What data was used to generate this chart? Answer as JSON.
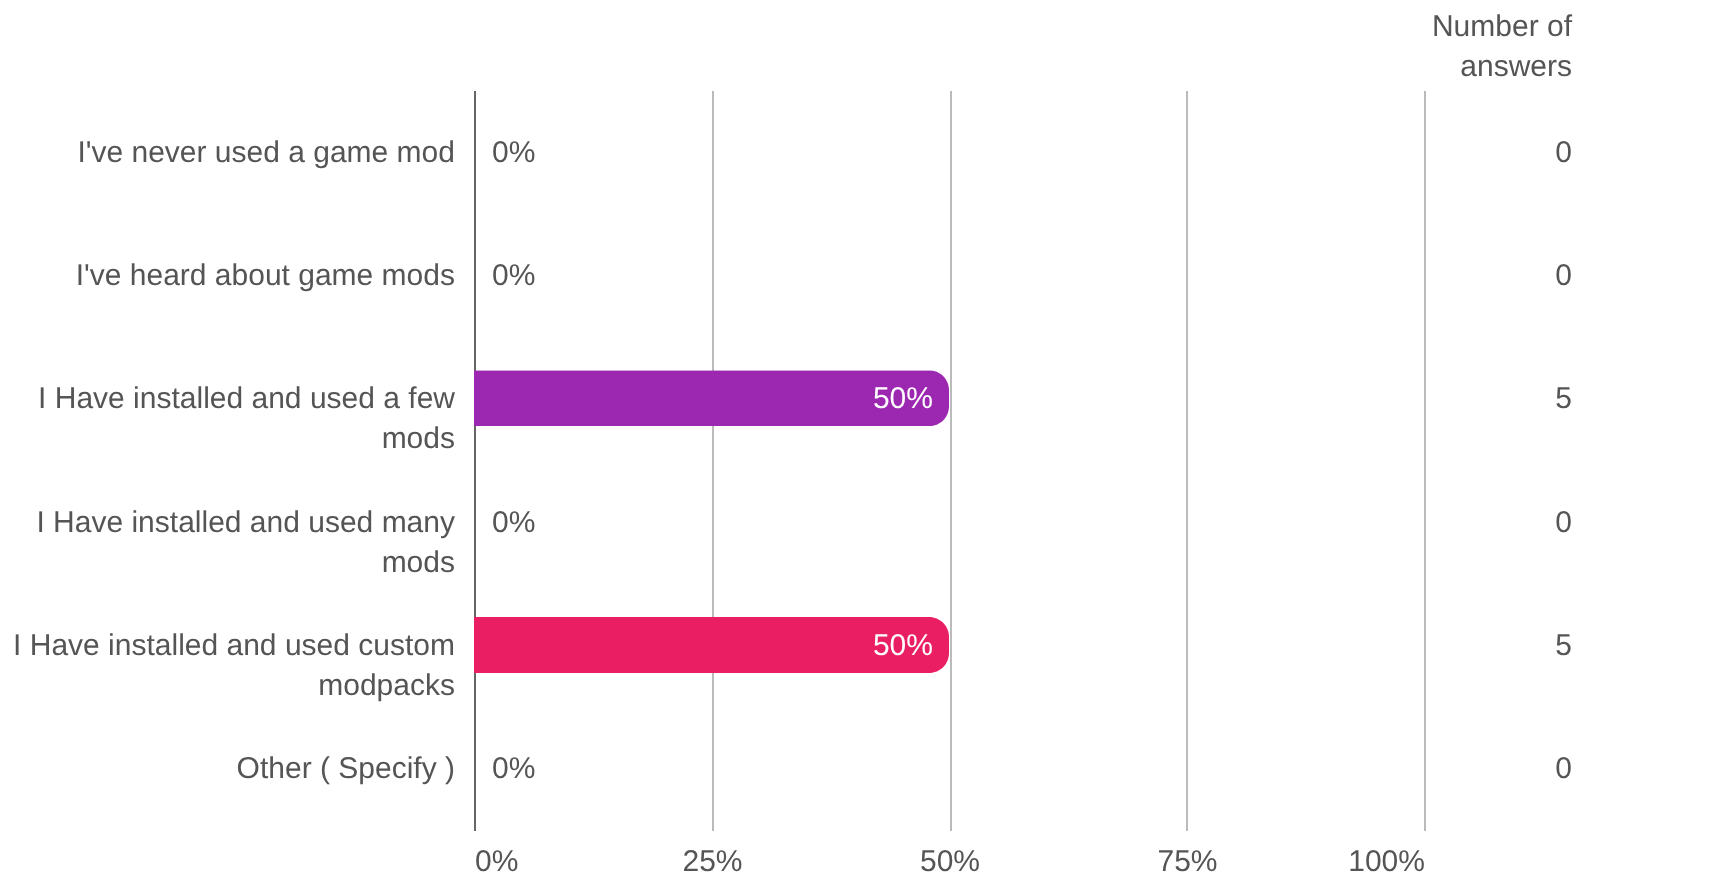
{
  "chart_data": {
    "type": "bar",
    "orientation": "horizontal",
    "categories": [
      "I've never used a game mod",
      "I've heard about game mods",
      "I Have installed and used a few mods",
      "I Have installed and used many mods",
      "I Have installed and used custom modpacks",
      "Other ( Specify )"
    ],
    "values": [
      0,
      0,
      50,
      0,
      50,
      0
    ],
    "colors": [
      null,
      null,
      "#9c27b0",
      null,
      "#e91e63",
      null
    ],
    "value_labels": [
      "0%",
      "0%",
      "50%",
      "0%",
      "50%",
      "0%"
    ],
    "xlim": [
      0,
      100
    ],
    "xticks": [
      {
        "value": 0,
        "label": "0%"
      },
      {
        "value": 25,
        "label": "25%"
      },
      {
        "value": 50,
        "label": "50%"
      },
      {
        "value": 75,
        "label": "75%"
      },
      {
        "value": 100,
        "label": "100%"
      }
    ],
    "grid": "x",
    "annotations": [
      "Number of answers",
      "0",
      "0",
      "5",
      "0",
      "5",
      "0"
    ]
  }
}
